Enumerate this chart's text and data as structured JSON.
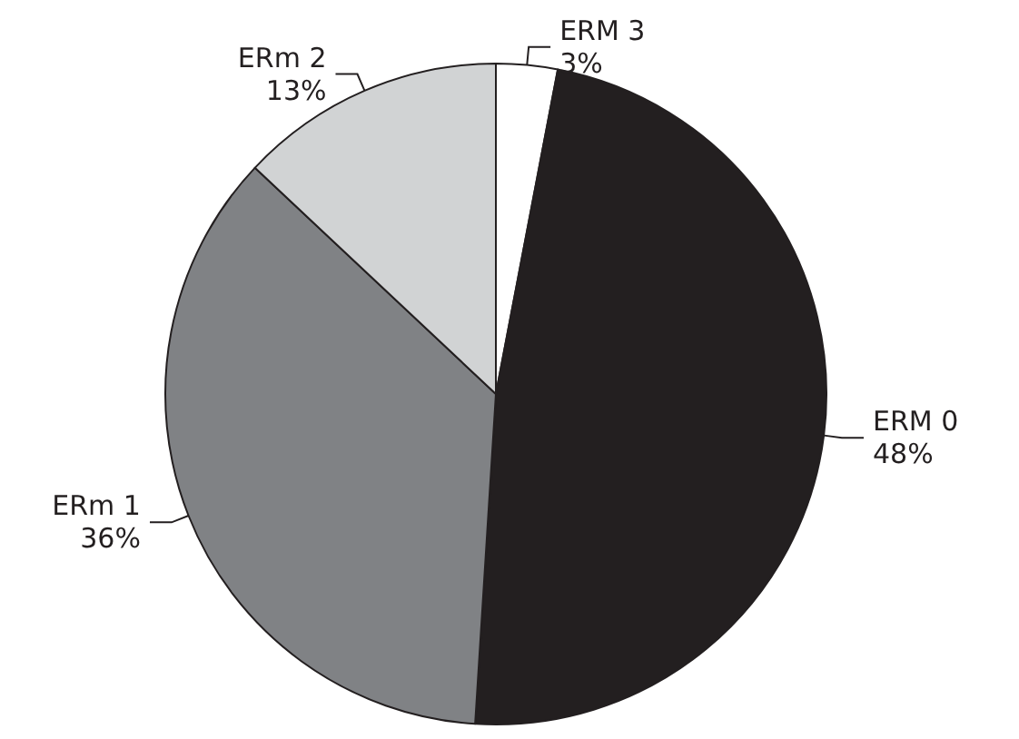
{
  "chart_data": {
    "type": "pie",
    "categories": [
      "ERM 3",
      "ERM 0",
      "ERm 1",
      "ERm 2"
    ],
    "values": [
      3,
      48,
      36,
      13
    ],
    "value_labels": [
      "3%",
      "48%",
      "36%",
      "13%"
    ],
    "colors": [
      "#ffffff",
      "#231f20",
      "#808285",
      "#d1d3d4"
    ]
  }
}
